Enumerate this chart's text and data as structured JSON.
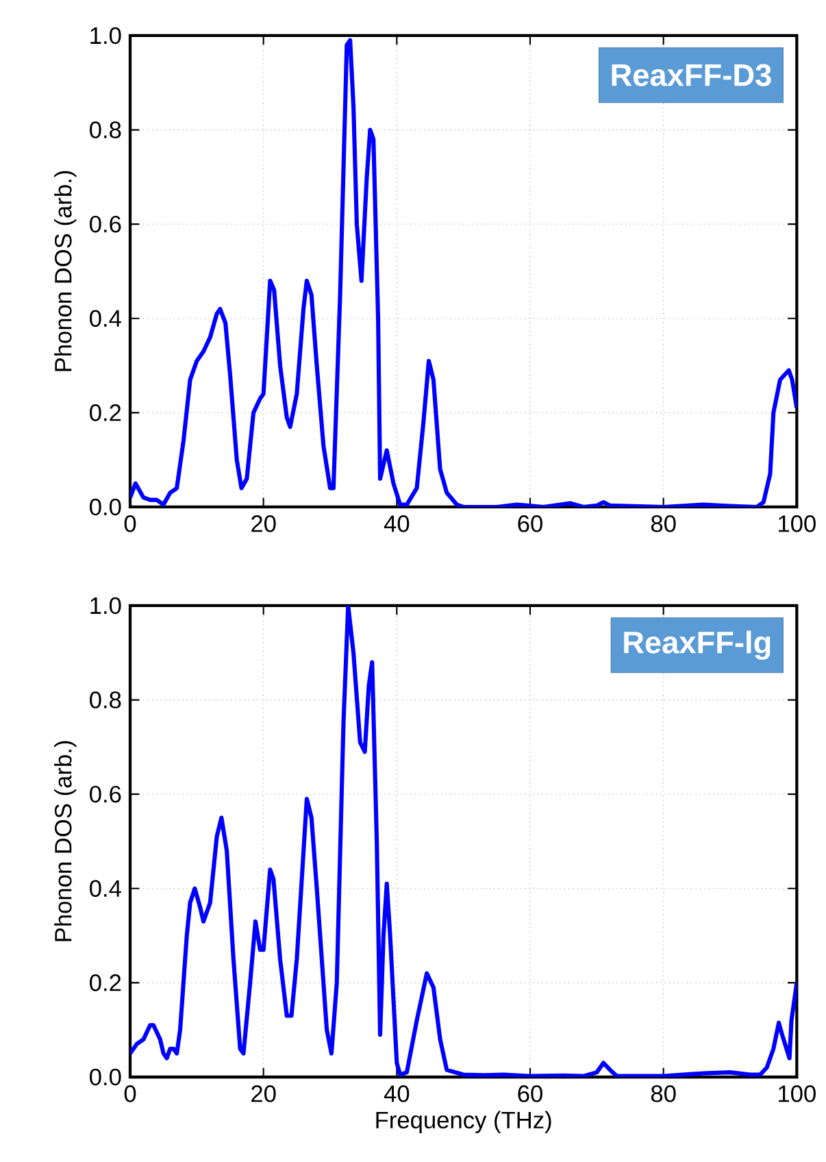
{
  "chart_data": [
    {
      "type": "line",
      "ylabel": "Phonon DOS (arb.)",
      "annotations": [
        "ReaxFF-D3"
      ],
      "xlim": [
        0,
        100
      ],
      "ylim": [
        0,
        1
      ],
      "xticks": [
        0,
        20,
        40,
        60,
        80,
        100
      ],
      "yticks": [
        {
          "value": 0,
          "label": "0.0"
        },
        {
          "value": 0.2,
          "label": "0.2"
        },
        {
          "value": 0.4,
          "label": "0.4"
        },
        {
          "value": 0.6,
          "label": "0.6"
        },
        {
          "value": 0.8,
          "label": "0.8"
        },
        {
          "value": 1,
          "label": "1.0"
        }
      ],
      "grid": true,
      "line_style": "solid",
      "color": "#0000ff",
      "x": [
        0,
        0.8,
        2,
        3,
        4,
        5,
        6,
        7,
        8,
        9,
        10,
        11,
        12,
        13,
        13.5,
        14.3,
        15,
        16,
        16.7,
        17.5,
        18.5,
        19.5,
        20,
        21,
        21.6,
        22.5,
        23.5,
        24,
        25,
        26,
        26.5,
        27.2,
        28,
        29,
        30,
        30.5,
        31.5,
        32.5,
        33,
        33.5,
        34,
        34.7,
        35.5,
        36,
        36.5,
        37.2,
        37.5,
        38,
        38.5,
        39.5,
        40.5,
        41.5,
        43,
        44,
        44.8,
        45.5,
        46.5,
        47.5,
        49,
        50,
        55,
        58,
        62,
        66,
        68,
        70,
        71,
        72,
        80,
        86,
        90,
        94,
        95,
        96,
        96.5,
        97.5,
        98.8,
        99.3,
        100
      ],
      "values": [
        0.02,
        0.05,
        0.02,
        0.015,
        0.015,
        0.005,
        0.03,
        0.04,
        0.14,
        0.27,
        0.31,
        0.33,
        0.36,
        0.41,
        0.42,
        0.39,
        0.28,
        0.1,
        0.04,
        0.06,
        0.2,
        0.23,
        0.24,
        0.48,
        0.46,
        0.3,
        0.19,
        0.17,
        0.24,
        0.42,
        0.48,
        0.45,
        0.3,
        0.13,
        0.04,
        0.04,
        0.45,
        0.98,
        0.99,
        0.85,
        0.6,
        0.48,
        0.7,
        0.8,
        0.78,
        0.4,
        0.06,
        0.09,
        0.12,
        0.05,
        0.005,
        0.005,
        0.04,
        0.18,
        0.31,
        0.27,
        0.08,
        0.03,
        0.005,
        0,
        0,
        0.005,
        0,
        0.008,
        0,
        0.003,
        0.01,
        0.003,
        0,
        0.005,
        0.002,
        0,
        0.01,
        0.07,
        0.2,
        0.27,
        0.29,
        0.27,
        0.21
      ]
    },
    {
      "type": "line",
      "xlabel": "Frequency (THz)",
      "ylabel": "Phonon DOS (arb.)",
      "annotations": [
        "ReaxFF-lg"
      ],
      "xlim": [
        0,
        100
      ],
      "ylim": [
        0,
        1
      ],
      "xticks": [
        0,
        20,
        40,
        60,
        80,
        100
      ],
      "yticks": [
        {
          "value": 0,
          "label": "0.0"
        },
        {
          "value": 0.2,
          "label": "0.2"
        },
        {
          "value": 0.4,
          "label": "0.4"
        },
        {
          "value": 0.6,
          "label": "0.6"
        },
        {
          "value": 0.8,
          "label": "0.8"
        },
        {
          "value": 1,
          "label": "1.0"
        }
      ],
      "grid": true,
      "line_style": "solid",
      "color": "#0000ff",
      "x": [
        0,
        1,
        2,
        3,
        3.5,
        4.5,
        5,
        5.5,
        6,
        6.5,
        7,
        7.5,
        8.5,
        9,
        9.7,
        10.5,
        11,
        12,
        13,
        13.7,
        14.5,
        15.5,
        16.5,
        17,
        18,
        18.8,
        19.5,
        20,
        21,
        21.5,
        22.5,
        23.5,
        24.2,
        25,
        26.5,
        27.2,
        28,
        29.5,
        30.2,
        31,
        32,
        32.7,
        33.5,
        34.5,
        35.2,
        35.8,
        36.3,
        37,
        37.5,
        38,
        38.5,
        39,
        40,
        40.5,
        41.5,
        43,
        44.5,
        45.5,
        46.5,
        47.5,
        50,
        53,
        56,
        60,
        65,
        68,
        70,
        71,
        72,
        73,
        80,
        86,
        90,
        93,
        94.5,
        95.5,
        96.5,
        97.3,
        97.8,
        98.9,
        99.2,
        100
      ],
      "values": [
        0.05,
        0.07,
        0.08,
        0.11,
        0.11,
        0.08,
        0.05,
        0.04,
        0.06,
        0.06,
        0.05,
        0.1,
        0.3,
        0.37,
        0.4,
        0.36,
        0.33,
        0.37,
        0.51,
        0.55,
        0.48,
        0.25,
        0.06,
        0.05,
        0.2,
        0.33,
        0.27,
        0.27,
        0.44,
        0.42,
        0.25,
        0.13,
        0.13,
        0.25,
        0.59,
        0.55,
        0.4,
        0.1,
        0.05,
        0.2,
        0.75,
        1.0,
        0.9,
        0.71,
        0.69,
        0.83,
        0.88,
        0.5,
        0.09,
        0.3,
        0.41,
        0.3,
        0.03,
        0.005,
        0.01,
        0.12,
        0.22,
        0.19,
        0.08,
        0.015,
        0.005,
        0.004,
        0.005,
        0.002,
        0.003,
        0.002,
        0.01,
        0.03,
        0.015,
        0.002,
        0.002,
        0.008,
        0.01,
        0.005,
        0.005,
        0.02,
        0.06,
        0.115,
        0.09,
        0.04,
        0.12,
        0.2
      ]
    }
  ]
}
